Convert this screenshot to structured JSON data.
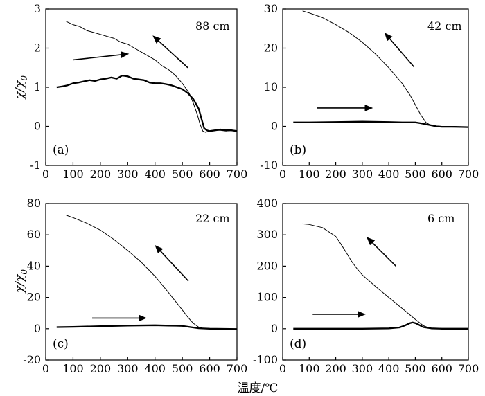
{
  "figure": {
    "xlabel": "温度/℃"
  },
  "chart_data": [
    {
      "type": "line",
      "panel_label": "(a)",
      "depth_label": "88 cm",
      "ylabel": "χ/χ",
      "ylabel_sub": "0",
      "xlim": [
        0,
        700
      ],
      "ylim": [
        -1,
        3
      ],
      "xticks": [
        0,
        100,
        200,
        300,
        400,
        500,
        600,
        700
      ],
      "yticks": [
        -1,
        0,
        1,
        2,
        3
      ],
      "series": [
        {
          "name": "heating",
          "x": [
            40,
            60,
            80,
            100,
            120,
            140,
            160,
            180,
            200,
            220,
            240,
            260,
            280,
            300,
            320,
            340,
            360,
            380,
            400,
            420,
            440,
            460,
            480,
            500,
            520,
            540,
            560,
            570,
            580,
            590,
            600,
            620,
            640,
            660,
            680,
            700
          ],
          "y": [
            1.0,
            1.02,
            1.05,
            1.1,
            1.12,
            1.15,
            1.18,
            1.16,
            1.2,
            1.22,
            1.25,
            1.22,
            1.3,
            1.28,
            1.22,
            1.2,
            1.18,
            1.12,
            1.1,
            1.1,
            1.08,
            1.05,
            1.0,
            0.95,
            0.85,
            0.7,
            0.45,
            0.2,
            -0.05,
            -0.1,
            -0.12,
            -0.1,
            -0.08,
            -0.1,
            -0.1,
            -0.12
          ]
        },
        {
          "name": "cooling",
          "x": [
            75,
            100,
            125,
            150,
            175,
            200,
            225,
            250,
            275,
            300,
            325,
            350,
            375,
            400,
            425,
            450,
            475,
            500,
            525,
            540,
            555,
            565,
            575,
            585,
            600,
            620,
            640,
            660,
            680,
            700
          ],
          "y": [
            2.68,
            2.6,
            2.55,
            2.45,
            2.4,
            2.35,
            2.3,
            2.25,
            2.15,
            2.1,
            2.0,
            1.9,
            1.8,
            1.7,
            1.55,
            1.45,
            1.3,
            1.1,
            0.85,
            0.6,
            0.3,
            0.05,
            -0.12,
            -0.15,
            -0.12,
            -0.1,
            -0.1,
            -0.12,
            -0.1,
            -0.12
          ]
        }
      ],
      "arrows": [
        {
          "direction": "heating",
          "from": [
            100,
            1.7
          ],
          "to": [
            300,
            1.85
          ]
        },
        {
          "direction": "cooling",
          "from": [
            520,
            1.5
          ],
          "to": [
            395,
            2.3
          ]
        }
      ]
    },
    {
      "type": "line",
      "panel_label": "(b)",
      "depth_label": "42 cm",
      "ylabel": "",
      "ylabel_sub": "",
      "xlim": [
        0,
        700
      ],
      "ylim": [
        -10,
        30
      ],
      "xticks": [
        0,
        100,
        200,
        300,
        400,
        500,
        600,
        700
      ],
      "yticks": [
        -10,
        0,
        10,
        20,
        30
      ],
      "series": [
        {
          "name": "heating",
          "x": [
            40,
            100,
            200,
            300,
            400,
            450,
            500,
            520,
            550,
            580,
            600,
            650,
            700
          ],
          "y": [
            1.0,
            1.0,
            1.1,
            1.2,
            1.1,
            1.0,
            1.0,
            0.8,
            0.4,
            0.0,
            -0.1,
            -0.1,
            -0.2
          ]
        },
        {
          "name": "cooling",
          "x": [
            75,
            100,
            150,
            200,
            250,
            300,
            350,
            400,
            450,
            480,
            500,
            520,
            540,
            560,
            580,
            600,
            650,
            700
          ],
          "y": [
            29.5,
            29.0,
            27.8,
            26.0,
            24.0,
            21.5,
            18.5,
            15.0,
            11.0,
            8.0,
            5.5,
            3.0,
            1.0,
            0.2,
            -0.1,
            -0.1,
            -0.2,
            -0.2
          ]
        }
      ],
      "arrows": [
        {
          "direction": "heating",
          "from": [
            130,
            4.7
          ],
          "to": [
            335,
            4.7
          ]
        },
        {
          "direction": "cooling",
          "from": [
            495,
            15.2
          ],
          "to": [
            387,
            23.7
          ]
        }
      ]
    },
    {
      "type": "line",
      "panel_label": "(c)",
      "depth_label": "22 cm",
      "ylabel": "χ/χ",
      "ylabel_sub": "0",
      "xlim": [
        0,
        700
      ],
      "ylim": [
        -20,
        80
      ],
      "xticks": [
        0,
        100,
        200,
        300,
        400,
        500,
        600,
        700
      ],
      "yticks": [
        -20,
        0,
        20,
        40,
        60,
        80
      ],
      "series": [
        {
          "name": "heating",
          "x": [
            40,
            100,
            200,
            300,
            400,
            450,
            500,
            530,
            560,
            600,
            650,
            700
          ],
          "y": [
            1.0,
            1.2,
            1.6,
            2.0,
            2.2,
            2.0,
            1.8,
            1.0,
            0.3,
            0.0,
            -0.1,
            -0.2
          ]
        },
        {
          "name": "cooling",
          "x": [
            75,
            100,
            150,
            200,
            250,
            300,
            350,
            400,
            450,
            500,
            520,
            540,
            560,
            580,
            600,
            650,
            700
          ],
          "y": [
            72.5,
            71,
            67.5,
            63,
            57,
            50,
            42.5,
            33.5,
            23,
            12,
            7.5,
            3.5,
            1.0,
            0.1,
            -0.1,
            -0.1,
            -0.2
          ]
        }
      ],
      "arrows": [
        {
          "direction": "heating",
          "from": [
            170,
            6.8
          ],
          "to": [
            365,
            6.8
          ]
        },
        {
          "direction": "cooling",
          "from": [
            522,
            30.5
          ],
          "to": [
            403,
            52.8
          ]
        }
      ]
    },
    {
      "type": "line",
      "panel_label": "(d)",
      "depth_label": "6 cm",
      "ylabel": "",
      "ylabel_sub": "",
      "xlim": [
        0,
        700
      ],
      "ylim": [
        -100,
        400
      ],
      "xticks": [
        0,
        100,
        200,
        300,
        400,
        500,
        600,
        700
      ],
      "yticks": [
        -100,
        0,
        100,
        200,
        300,
        400
      ],
      "series": [
        {
          "name": "heating",
          "x": [
            40,
            100,
            200,
            300,
            400,
            440,
            460,
            480,
            490,
            500,
            510,
            530,
            560,
            600,
            650,
            700
          ],
          "y": [
            0,
            0,
            0,
            0,
            1,
            4,
            10,
            18,
            20,
            18,
            14,
            5,
            1,
            0,
            0,
            0
          ]
        },
        {
          "name": "cooling",
          "x": [
            75,
            100,
            150,
            200,
            220,
            240,
            260,
            280,
            300,
            350,
            400,
            450,
            500,
            530,
            550,
            575,
            600,
            650,
            700
          ],
          "y": [
            335,
            333,
            323,
            295,
            270,
            243,
            215,
            192,
            172,
            135,
            100,
            65,
            30,
            10,
            3,
            0,
            0,
            0,
            0
          ]
        }
      ],
      "arrows": [
        {
          "direction": "heating",
          "from": [
            113,
            46
          ],
          "to": [
            308,
            46
          ]
        },
        {
          "direction": "cooling",
          "from": [
            427,
            200
          ],
          "to": [
            320,
            290
          ]
        }
      ]
    }
  ]
}
